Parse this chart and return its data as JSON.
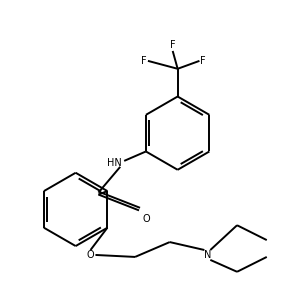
{
  "bg_color": "#ffffff",
  "line_color": "#000000",
  "lw": 1.4,
  "fs": 7.0,
  "figsize": [
    2.84,
    2.98
  ],
  "dpi": 100,
  "xlim": [
    0,
    284
  ],
  "ylim": [
    0,
    298
  ]
}
